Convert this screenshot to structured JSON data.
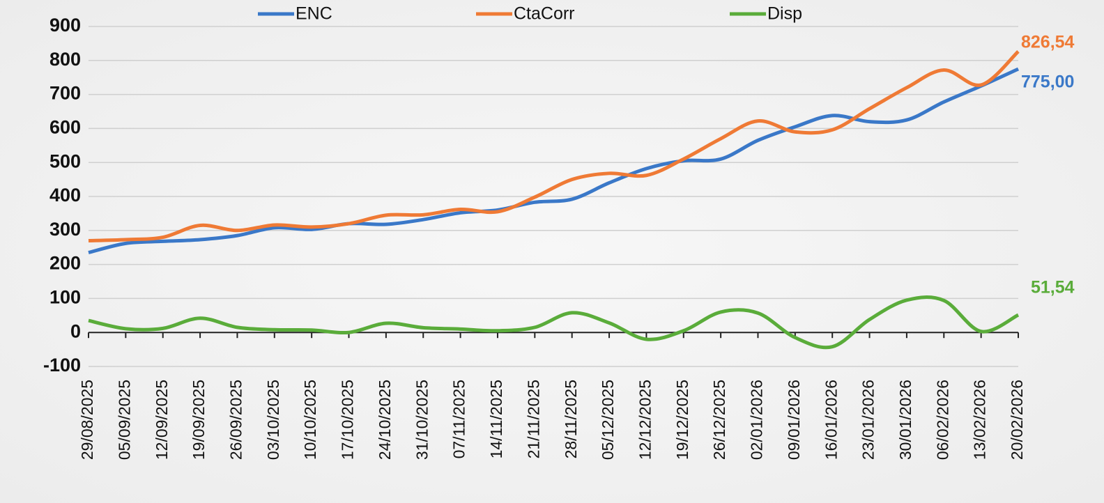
{
  "chart_data": {
    "type": "line",
    "categories": [
      "29/08/2025",
      "05/09/2025",
      "12/09/2025",
      "19/09/2025",
      "26/09/2025",
      "03/10/2025",
      "10/10/2025",
      "17/10/2025",
      "24/10/2025",
      "31/10/2025",
      "07/11/2025",
      "14/11/2025",
      "21/11/2025",
      "28/11/2025",
      "05/12/2025",
      "12/12/2025",
      "19/12/2025",
      "26/12/2025",
      "02/01/2026",
      "09/01/2026",
      "16/01/2026",
      "23/01/2026",
      "30/01/2026",
      "06/02/2026",
      "13/02/2026",
      "20/02/2026"
    ],
    "series": [
      {
        "name": "ENC",
        "color": "#3a78c8",
        "values": [
          235,
          262,
          268,
          273,
          285,
          308,
          303,
          320,
          318,
          332,
          352,
          360,
          383,
          392,
          440,
          482,
          505,
          510,
          565,
          605,
          638,
          620,
          625,
          678,
          725,
          775
        ],
        "value_labels": [
          null,
          null,
          null,
          null,
          null,
          null,
          null,
          null,
          null,
          null,
          null,
          null,
          null,
          null,
          null,
          null,
          null,
          null,
          null,
          null,
          null,
          null,
          null,
          null,
          null,
          "775,00"
        ]
      },
      {
        "name": "CtaCorr",
        "color": "#ef7a35",
        "values": [
          270,
          273,
          280,
          315,
          300,
          316,
          310,
          320,
          345,
          346,
          362,
          355,
          398,
          450,
          468,
          462,
          510,
          570,
          622,
          590,
          596,
          658,
          720,
          772,
          728,
          826.54
        ],
        "value_labels": [
          null,
          null,
          null,
          null,
          null,
          null,
          null,
          null,
          null,
          null,
          null,
          null,
          null,
          null,
          null,
          null,
          null,
          null,
          null,
          null,
          null,
          null,
          null,
          null,
          null,
          "826,54"
        ]
      },
      {
        "name": "Disp",
        "color": "#5aac3a",
        "values": [
          35,
          11,
          12,
          42,
          15,
          8,
          7,
          0,
          27,
          14,
          10,
          5,
          15,
          58,
          28,
          -20,
          5,
          60,
          57,
          -15,
          -42,
          38,
          95,
          94,
          3,
          51.54
        ],
        "value_labels": [
          null,
          null,
          null,
          null,
          null,
          null,
          null,
          null,
          null,
          null,
          null,
          null,
          null,
          null,
          null,
          null,
          null,
          null,
          null,
          null,
          null,
          null,
          null,
          null,
          null,
          "51,54"
        ]
      }
    ],
    "ylim": [
      -100,
      900
    ],
    "yticks": [
      -100,
      0,
      100,
      200,
      300,
      400,
      500,
      600,
      700,
      800,
      900
    ],
    "grid": true,
    "legend": "top"
  }
}
